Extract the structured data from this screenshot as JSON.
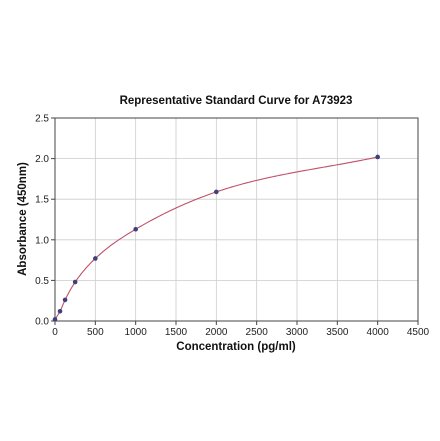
{
  "chart_data": {
    "type": "scatter",
    "title": "Representative Standard Curve for A73923",
    "xlabel": "Concentration (pg/ml)",
    "ylabel": "Absorbance (450nm)",
    "xlim": [
      0,
      4500
    ],
    "ylim": [
      0,
      2.5
    ],
    "xticks": [
      0,
      500,
      1000,
      1500,
      2000,
      2500,
      3000,
      3500,
      4000,
      4500
    ],
    "yticks": [
      "0.0",
      "0.5",
      "1.0",
      "1.5",
      "2.0",
      "2.5"
    ],
    "grid": true,
    "series": [
      {
        "x": [
          0,
          62.5,
          125,
          250,
          500,
          1000,
          2000,
          4000
        ],
        "y": [
          0.02,
          0.12,
          0.26,
          0.48,
          0.77,
          1.13,
          1.59,
          2.02
        ]
      }
    ],
    "fit_curve": true,
    "colors": {
      "points": "#3f3f7a",
      "curve": "#c0506a",
      "grid": "#cccccc",
      "frame": "#444444"
    }
  }
}
